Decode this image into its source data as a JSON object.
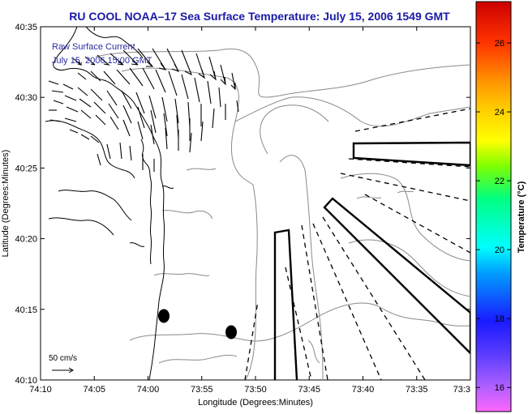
{
  "title": "RU COOL  NOAA–17  Sea Surface Temperature:  July 15, 2006 1549 GMT",
  "legend_text": {
    "line1": "Raw Surface Current",
    "line2": "July 15, 2006 15:00 GMT"
  },
  "scale_label": "50 cm/s",
  "x_axis": {
    "label": "Longitude (Degrees:Minutes)",
    "ticks": [
      "74:10",
      "74:05",
      "74:00",
      "73:55",
      "73:50",
      "73:45",
      "73:40",
      "73:35",
      "73:3"
    ]
  },
  "y_axis": {
    "label": "Latitude (Degrees:Minutes)",
    "ticks": [
      "40:35",
      "40:30",
      "40:25",
      "40:20",
      "40:15",
      "40:10"
    ]
  },
  "colorbar": {
    "label": "Temperature (°C)",
    "ticks": [
      "26",
      "24",
      "22",
      "20",
      "18",
      "16"
    ],
    "range": [
      15.3,
      27.2
    ]
  },
  "colors": {
    "title": "#1a1aa6",
    "legend_text": "#2a2aa0",
    "coastline": "#000000",
    "bathymetry": "#8a8a8a"
  }
}
